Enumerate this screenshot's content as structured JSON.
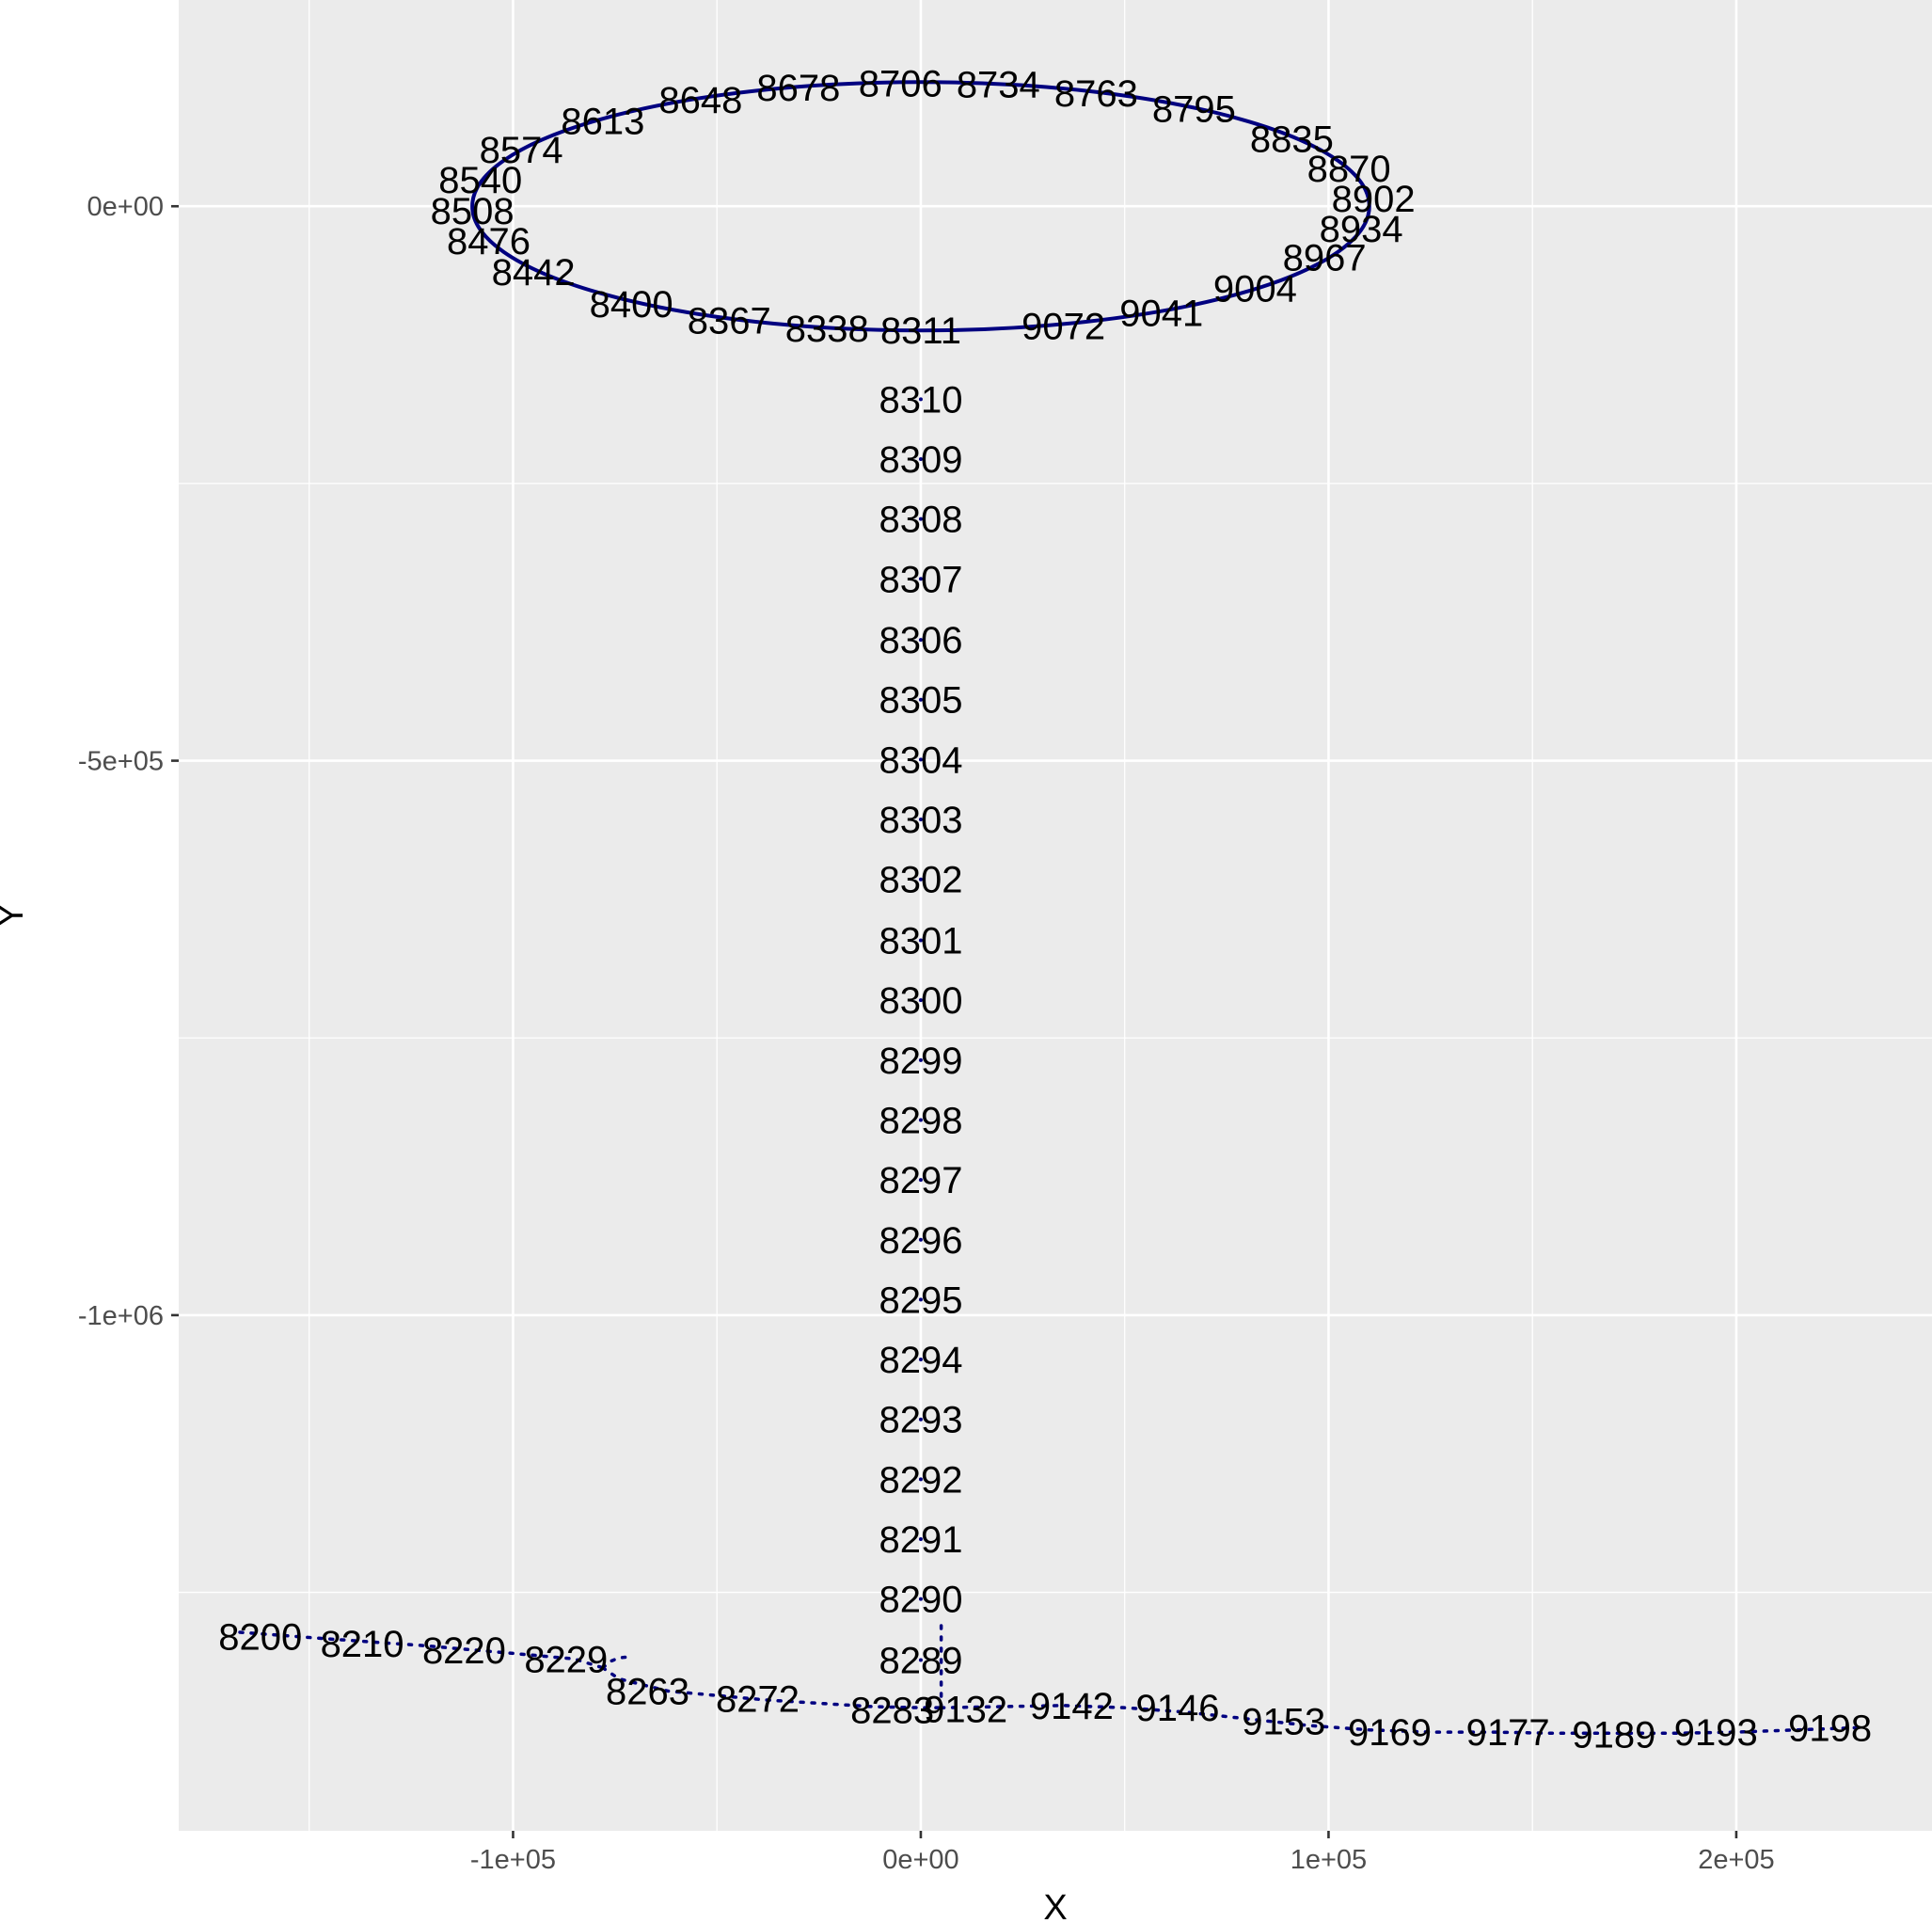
{
  "colors": {
    "panel": "#ebebeb",
    "grid": "#ffffff",
    "line": "#000080",
    "text": "#000000",
    "tick_text": "#4d4d4d"
  },
  "chart_data": {
    "type": "scatter",
    "title": "",
    "xlabel": "X",
    "ylabel": "Y",
    "xlim": [
      -182000,
      248000
    ],
    "ylim": [
      -1465000,
      186000
    ],
    "x_ticks": [
      {
        "value": -100000,
        "label": "-1e+05"
      },
      {
        "value": 0,
        "label": "0e+00"
      },
      {
        "value": 100000,
        "label": "1e+05"
      },
      {
        "value": 200000,
        "label": "2e+05"
      }
    ],
    "y_ticks": [
      {
        "value": 0,
        "label": "0e+00"
      },
      {
        "value": -500000,
        "label": "-5e+05"
      },
      {
        "value": -1000000,
        "label": "-1e+06"
      }
    ],
    "grid": true,
    "legend": "none",
    "ellipse": {
      "center": [
        0,
        0
      ],
      "rx": 110000,
      "ry": 112000
    },
    "labeled_points": [
      {
        "label": "8200",
        "x": -162000,
        "y": -1290000
      },
      {
        "label": "8210",
        "x": -137000,
        "y": -1296000
      },
      {
        "label": "8220",
        "x": -112000,
        "y": -1302000
      },
      {
        "label": "8229",
        "x": -87000,
        "y": -1310000
      },
      {
        "label": "8263",
        "x": -67000,
        "y": -1339000
      },
      {
        "label": "8272",
        "x": -40000,
        "y": -1346000
      },
      {
        "label": "8283",
        "x": -7000,
        "y": -1356000
      },
      {
        "label": "8289",
        "x": 0,
        "y": -1311000
      },
      {
        "label": "8290",
        "x": 0,
        "y": -1256000
      },
      {
        "label": "8291",
        "x": 0,
        "y": -1202000
      },
      {
        "label": "8292",
        "x": 0,
        "y": -1148000
      },
      {
        "label": "8293",
        "x": 0,
        "y": -1094000
      },
      {
        "label": "8294",
        "x": 0,
        "y": -1040000
      },
      {
        "label": "8295",
        "x": 0,
        "y": -986000
      },
      {
        "label": "8296",
        "x": 0,
        "y": -932000
      },
      {
        "label": "8297",
        "x": 0,
        "y": -878000
      },
      {
        "label": "8298",
        "x": 0,
        "y": -824000
      },
      {
        "label": "8299",
        "x": 0,
        "y": -770000
      },
      {
        "label": "8300",
        "x": 0,
        "y": -716000
      },
      {
        "label": "8301",
        "x": 0,
        "y": -662000
      },
      {
        "label": "8302",
        "x": 0,
        "y": -607000
      },
      {
        "label": "8303",
        "x": 0,
        "y": -553000
      },
      {
        "label": "8304",
        "x": 0,
        "y": -499000
      },
      {
        "label": "8305",
        "x": 0,
        "y": -445000
      },
      {
        "label": "8306",
        "x": 0,
        "y": -391000
      },
      {
        "label": "8307",
        "x": 0,
        "y": -336000
      },
      {
        "label": "8308",
        "x": 0,
        "y": -282000
      },
      {
        "label": "8309",
        "x": 0,
        "y": -228000
      },
      {
        "label": "8310",
        "x": 0,
        "y": -174000
      },
      {
        "label": "8311",
        "x": 0,
        "y": -112000
      },
      {
        "label": "8338",
        "x": -23000,
        "y": -110000
      },
      {
        "label": "8367",
        "x": -47000,
        "y": -103000
      },
      {
        "label": "8400",
        "x": -71000,
        "y": -88000
      },
      {
        "label": "8442",
        "x": -95000,
        "y": -59000
      },
      {
        "label": "8476",
        "x": -106000,
        "y": -31000
      },
      {
        "label": "8508",
        "x": -110000,
        "y": -4000
      },
      {
        "label": "8540",
        "x": -108000,
        "y": 24000
      },
      {
        "label": "8574",
        "x": -98000,
        "y": 51000
      },
      {
        "label": "8613",
        "x": -78000,
        "y": 77000
      },
      {
        "label": "8648",
        "x": -54000,
        "y": 96000
      },
      {
        "label": "8678",
        "x": -30000,
        "y": 107000
      },
      {
        "label": "8706",
        "x": -5000,
        "y": 111000
      },
      {
        "label": "8734",
        "x": 19000,
        "y": 110000
      },
      {
        "label": "8763",
        "x": 43000,
        "y": 102000
      },
      {
        "label": "8795",
        "x": 67000,
        "y": 88000
      },
      {
        "label": "8835",
        "x": 91000,
        "y": 61000
      },
      {
        "label": "8870",
        "x": 105000,
        "y": 34000
      },
      {
        "label": "8902",
        "x": 111000,
        "y": 7000
      },
      {
        "label": "8934",
        "x": 108000,
        "y": -20000
      },
      {
        "label": "8967",
        "x": 99000,
        "y": -46000
      },
      {
        "label": "9004",
        "x": 82000,
        "y": -74000
      },
      {
        "label": "9041",
        "x": 59000,
        "y": -96000
      },
      {
        "label": "9072",
        "x": 35000,
        "y": -108000
      },
      {
        "label": "9132",
        "x": 11000,
        "y": -1355000
      },
      {
        "label": "9142",
        "x": 37000,
        "y": -1352000
      },
      {
        "label": "9146",
        "x": 63000,
        "y": -1354000
      },
      {
        "label": "9153",
        "x": 89000,
        "y": -1366000
      },
      {
        "label": "9169",
        "x": 115000,
        "y": -1376000
      },
      {
        "label": "9177",
        "x": 144000,
        "y": -1376000
      },
      {
        "label": "9189",
        "x": 170000,
        "y": -1378000
      },
      {
        "label": "9198",
        "x": 223000,
        "y": -1372000
      },
      {
        "label": "9193",
        "x": 195000,
        "y": -1376000
      }
    ],
    "path_segments": [
      {
        "x": [
          -167000,
          -145000,
          -122000,
          -100000,
          -85000,
          -78000
        ],
        "y": [
          -1286000,
          -1292000,
          -1298000,
          -1305000,
          -1310000,
          -1318000
        ]
      },
      {
        "x": [
          -78000,
          -76000,
          -74000,
          -71000
        ],
        "y": [
          -1318000,
          -1312000,
          -1309000,
          -1308000
        ]
      },
      {
        "x": [
          -78000,
          -74000,
          -62000,
          -50000,
          -38000,
          -25000,
          -12000,
          0,
          5000
        ],
        "y": [
          -1318000,
          -1328000,
          -1339000,
          -1343000,
          -1347000,
          -1350000,
          -1353000,
          -1354000,
          -1354000
        ]
      },
      {
        "x": [
          5000,
          5000
        ],
        "y": [
          -1280000,
          -1360000
        ]
      },
      {
        "x": [
          5000,
          20000,
          35000,
          50000,
          65000,
          80000,
          95000,
          110000,
          125000,
          140000,
          155000,
          170000,
          185000,
          200000,
          215000,
          230000
        ],
        "y": [
          -1354000,
          -1353000,
          -1352000,
          -1354000,
          -1358000,
          -1364000,
          -1370000,
          -1374000,
          -1376000,
          -1376000,
          -1377000,
          -1377000,
          -1377000,
          -1376000,
          -1374000,
          -1372000
        ]
      }
    ]
  }
}
